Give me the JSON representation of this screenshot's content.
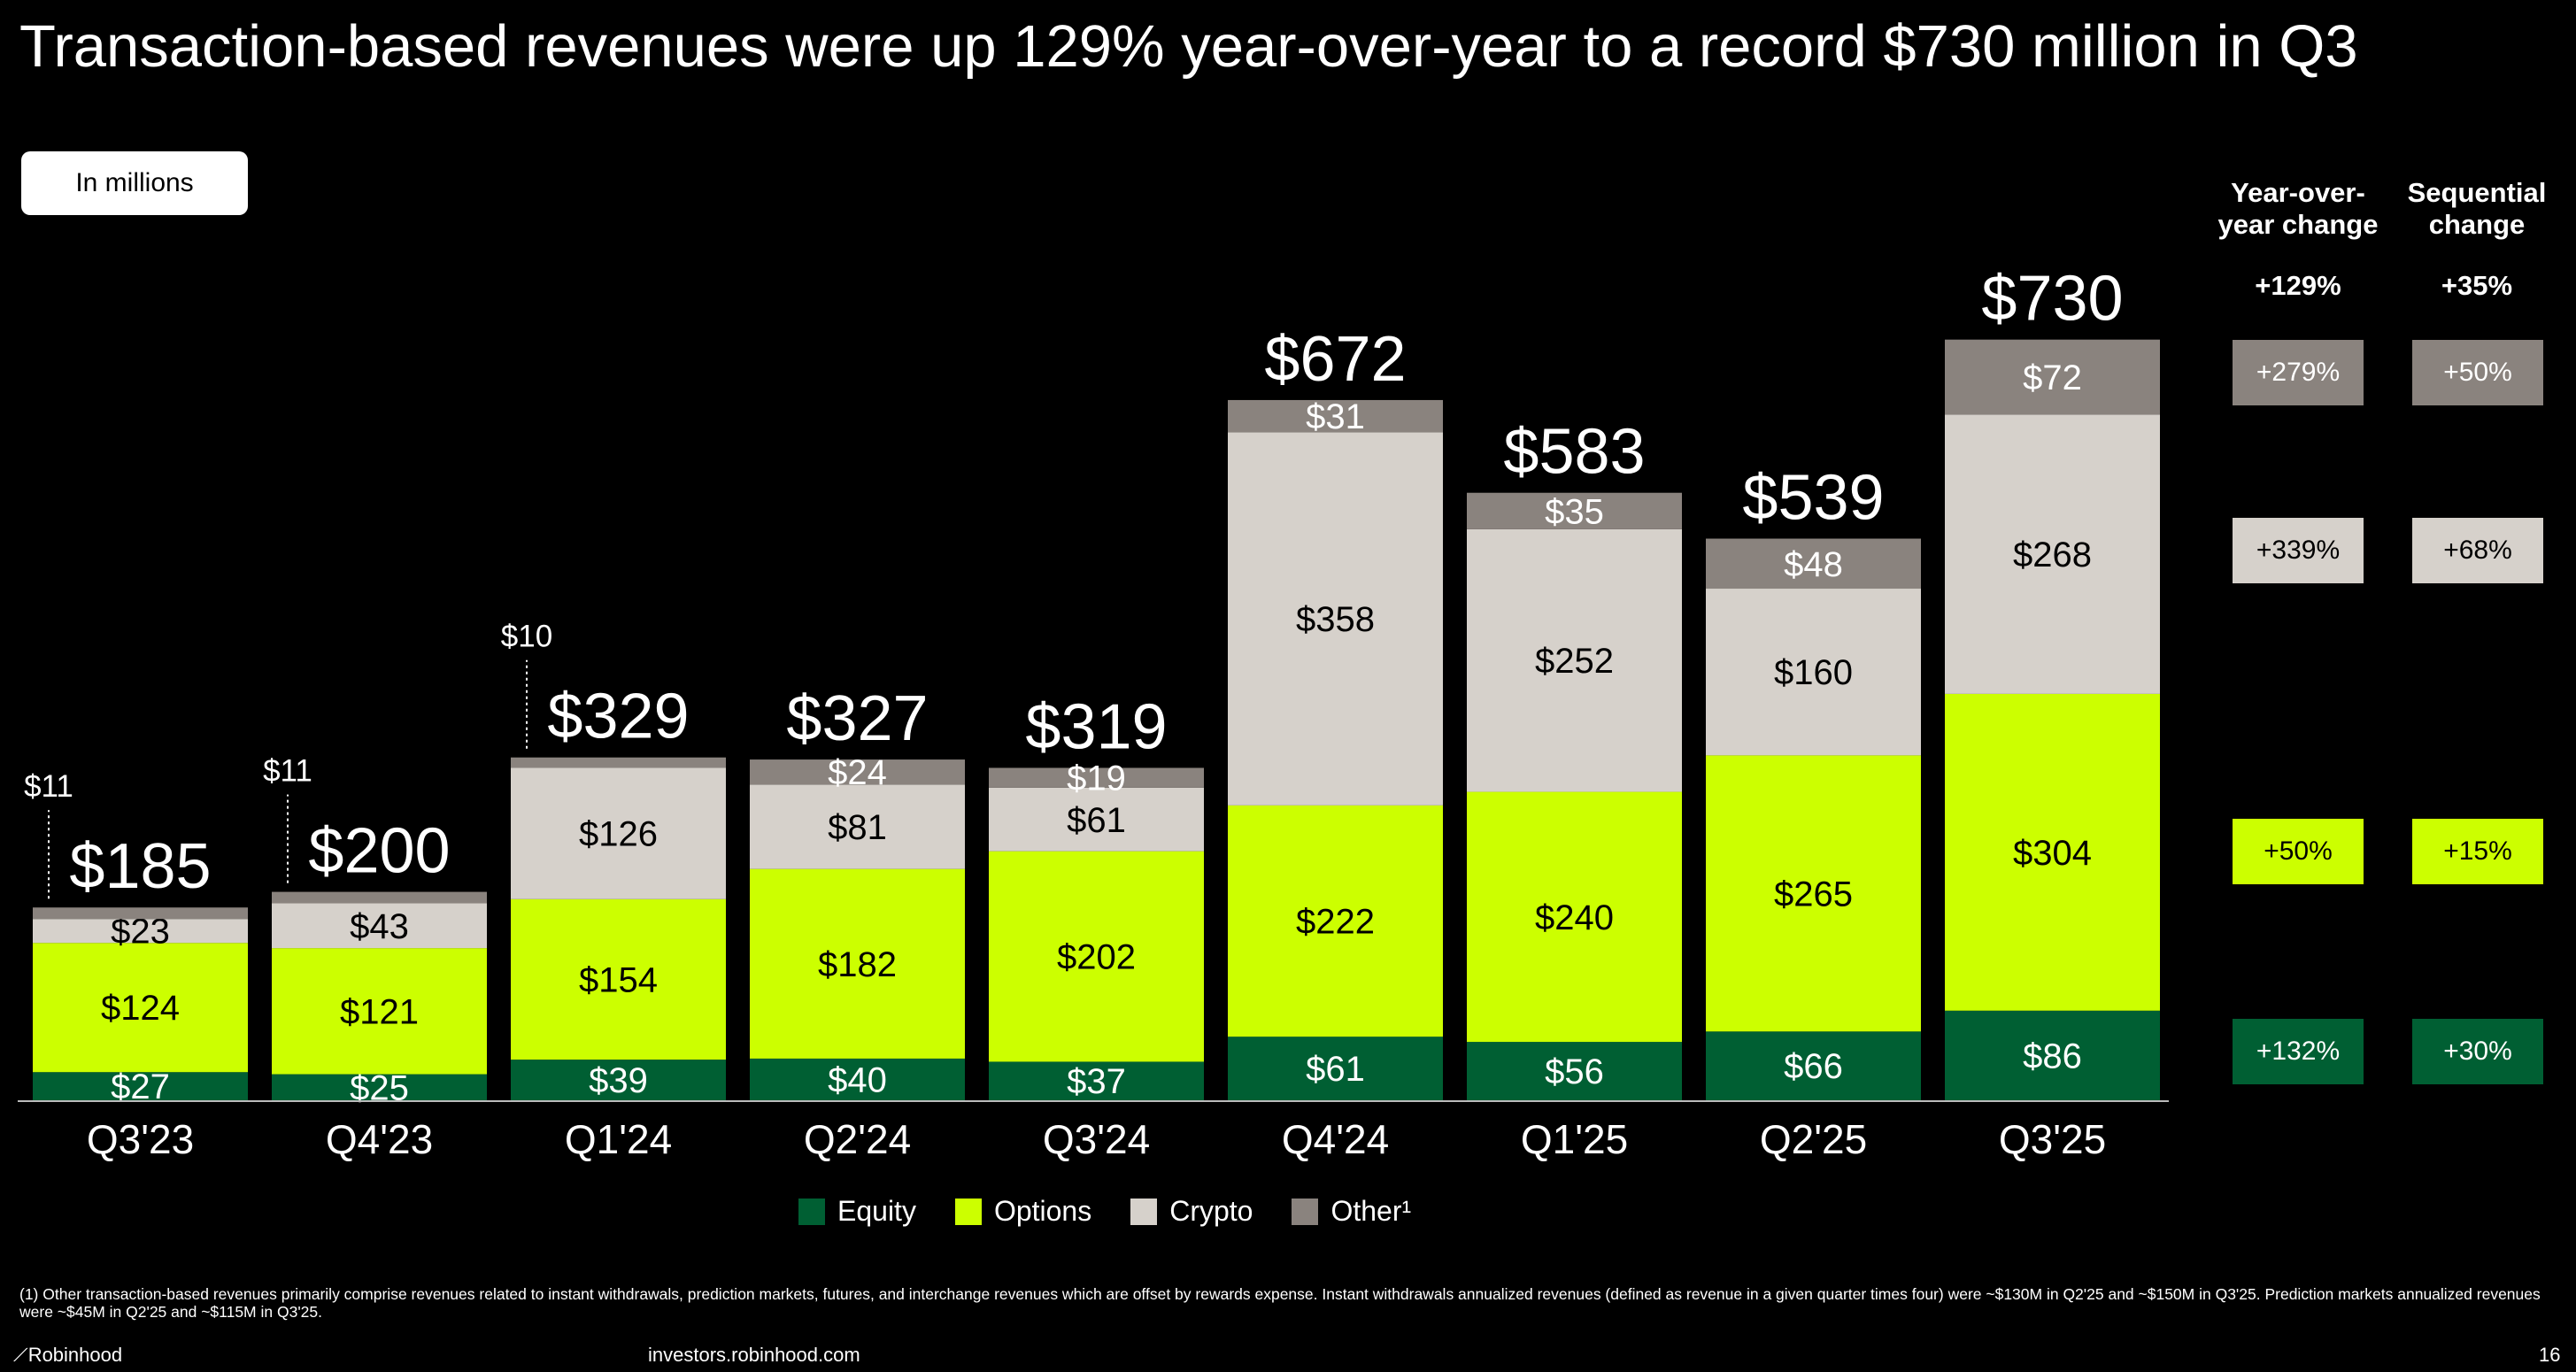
{
  "title": "Transaction-based revenues were up 129% year-over-year to a record $730 million in Q3",
  "unit_label": "In millions",
  "colors": {
    "Equity": "#005f33",
    "Options": "#ccff00",
    "Crypto": "#d6d1cb",
    "Other": "#8a837e",
    "background": "#000000"
  },
  "chart_data": {
    "type": "bar",
    "stacked": true,
    "categories": [
      "Q3'23",
      "Q4'23",
      "Q1'24",
      "Q2'24",
      "Q3'24",
      "Q4'24",
      "Q1'25",
      "Q2'25",
      "Q3'25"
    ],
    "series": [
      {
        "name": "Equity",
        "values": [
          27,
          25,
          39,
          40,
          37,
          61,
          56,
          66,
          86
        ],
        "labels": [
          "$27",
          "$25",
          "$39",
          "$40",
          "$37",
          "$61",
          "$56",
          "$66",
          "$86"
        ]
      },
      {
        "name": "Options",
        "values": [
          124,
          121,
          154,
          182,
          202,
          222,
          240,
          265,
          304
        ],
        "labels": [
          "$124",
          "$121",
          "$154",
          "$182",
          "$202",
          "$222",
          "$240",
          "$265",
          "$304"
        ]
      },
      {
        "name": "Crypto",
        "values": [
          23,
          43,
          126,
          81,
          61,
          358,
          252,
          160,
          268
        ],
        "labels": [
          "$23",
          "$43",
          "$126",
          "$81",
          "$61",
          "$358",
          "$252",
          "$160",
          "$268"
        ]
      },
      {
        "name": "Other¹",
        "values": [
          11,
          11,
          10,
          24,
          19,
          31,
          35,
          48,
          72
        ],
        "labels": [
          "$11",
          "$11",
          "$10",
          "$24",
          "$19",
          "$31",
          "$35",
          "$48",
          "$72"
        ]
      }
    ],
    "totals": [
      185,
      200,
      329,
      327,
      319,
      672,
      583,
      539,
      730
    ],
    "total_labels": [
      "$185",
      "$200",
      "$329",
      "$327",
      "$319",
      "$672",
      "$583",
      "$539",
      "$730"
    ],
    "ylim": [
      0,
      730
    ],
    "grid": false,
    "legend": "bottom"
  },
  "changes": {
    "yoy_header": [
      "Year-over-",
      "year change"
    ],
    "seq_header": [
      "Sequential",
      "change"
    ],
    "yoy_total": "+129%",
    "seq_total": "+35%",
    "rows": [
      {
        "segment": "Other",
        "yoy": "+279%",
        "seq": "+50%"
      },
      {
        "segment": "Crypto",
        "yoy": "+339%",
        "seq": "+68%"
      },
      {
        "segment": "Options",
        "yoy": "+50%",
        "seq": "+15%"
      },
      {
        "segment": "Equity",
        "yoy": "+132%",
        "seq": "+30%"
      }
    ]
  },
  "legend": [
    "Equity",
    "Options",
    "Crypto",
    "Other¹"
  ],
  "footnote": "(1) Other transaction-based revenues primarily comprise revenues related to instant withdrawals, prediction markets, futures, and interchange revenues which are offset by rewards expense. Instant withdrawals annualized revenues (defined as revenue in a given quarter times four) were ~$130M in Q2'25 and ~$150M in Q3'25. Prediction markets annualized revenues were ~$45M in Q2'25 and ~$115M in Q3'25.",
  "footer": {
    "brand": "Robinhood",
    "url": "investors.robinhood.com",
    "page": "16"
  }
}
